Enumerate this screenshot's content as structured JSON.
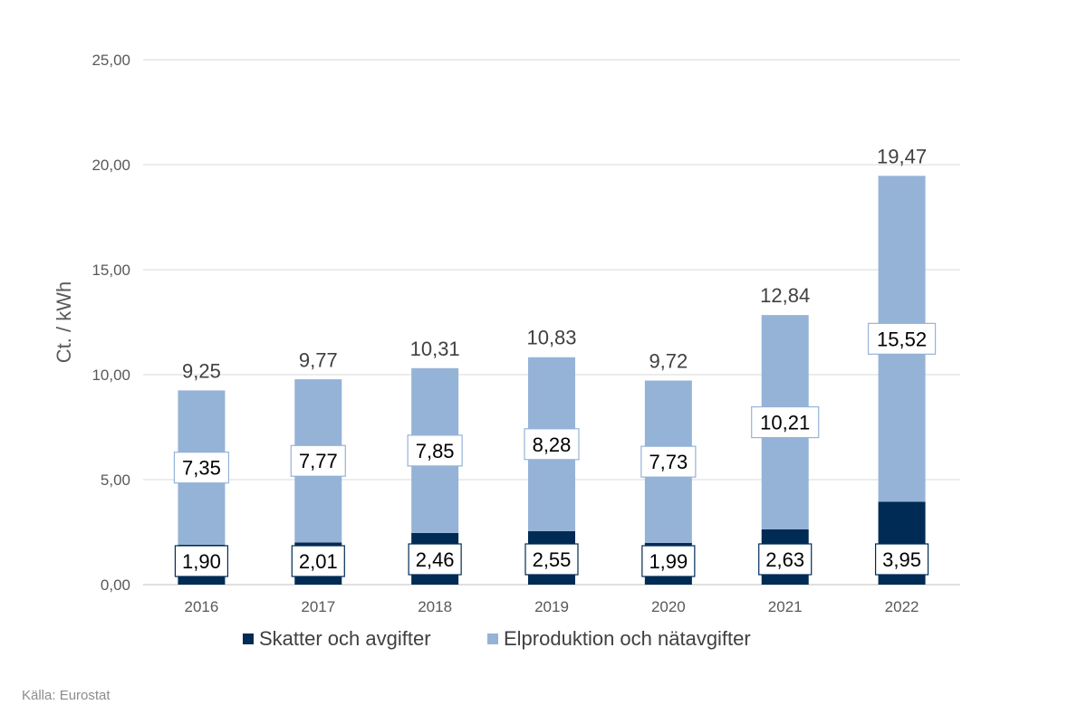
{
  "chart_data": {
    "type": "bar",
    "stacked": true,
    "categories": [
      "2016",
      "2017",
      "2018",
      "2019",
      "2020",
      "2021",
      "2022"
    ],
    "series": [
      {
        "name": "Skatter och avgifter",
        "color": "#002b54",
        "values": [
          1.9,
          2.01,
          2.46,
          2.55,
          1.99,
          2.63,
          3.95
        ],
        "labels": [
          "1,90",
          "2,01",
          "2,46",
          "2,55",
          "1,99",
          "2,63",
          "3,95"
        ]
      },
      {
        "name": "Elproduktion och nätavgifter",
        "color": "#95b3d7",
        "values": [
          7.35,
          7.77,
          7.85,
          8.28,
          7.73,
          10.21,
          15.52
        ],
        "labels": [
          "7,35",
          "7,77",
          "7,85",
          "8,28",
          "7,73",
          "10,21",
          "15,52"
        ]
      }
    ],
    "totals": [
      9.25,
      9.77,
      10.31,
      10.83,
      9.72,
      12.84,
      19.47
    ],
    "total_labels": [
      "9,25",
      "9,77",
      "10,31",
      "10,83",
      "9,72",
      "12,84",
      "19,47"
    ],
    "ylabel": "Ct. / kWh",
    "ylim": [
      0,
      25
    ],
    "yticks": [
      0,
      5,
      10,
      15,
      20,
      25
    ],
    "ytick_labels": [
      "0,00",
      "5,00",
      "10,00",
      "15,00",
      "20,00",
      "25,00"
    ],
    "grid": true,
    "legend_position": "bottom"
  },
  "source": "Källa: Eurostat"
}
